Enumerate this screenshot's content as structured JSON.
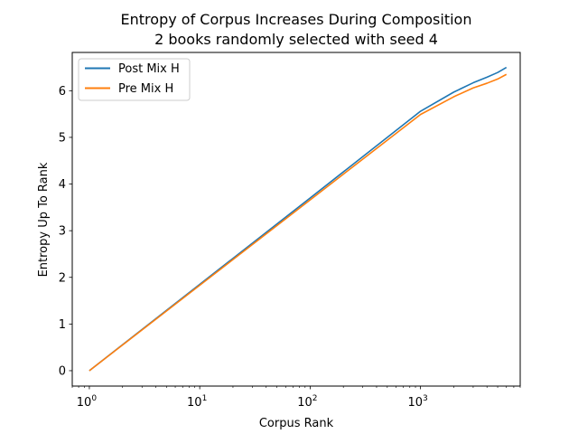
{
  "chart_data": {
    "type": "line",
    "title": [
      "Entropy of Corpus Increases During Composition",
      "2 books randomly selected with seed 4"
    ],
    "xlabel": "Corpus Rank",
    "ylabel": "Entropy Up To Rank",
    "xscale": "log",
    "xlim": [
      0.7,
      8000
    ],
    "ylim": [
      -0.33,
      6.82
    ],
    "xticks": [
      {
        "value": 1,
        "base": "10",
        "exp": "0"
      },
      {
        "value": 10,
        "base": "10",
        "exp": "1"
      },
      {
        "value": 100,
        "base": "10",
        "exp": "2"
      },
      {
        "value": 1000,
        "base": "10",
        "exp": "3"
      }
    ],
    "yticks": [
      0,
      1,
      2,
      3,
      4,
      5,
      6
    ],
    "legend_position": "top-left",
    "grid": false,
    "series": [
      {
        "name": "Post Mix H",
        "color": "#1f77b4",
        "x": [
          1,
          10,
          100,
          1000,
          2000,
          3000,
          4000,
          5000,
          6000
        ],
        "y": [
          0,
          1.85,
          3.7,
          5.56,
          5.97,
          6.17,
          6.29,
          6.39,
          6.5
        ]
      },
      {
        "name": "Pre Mix H",
        "color": "#ff7f0e",
        "x": [
          1,
          10,
          100,
          1000,
          2000,
          3000,
          4000,
          5000,
          6000
        ],
        "y": [
          0,
          1.83,
          3.66,
          5.49,
          5.87,
          6.06,
          6.16,
          6.25,
          6.35
        ]
      }
    ]
  }
}
